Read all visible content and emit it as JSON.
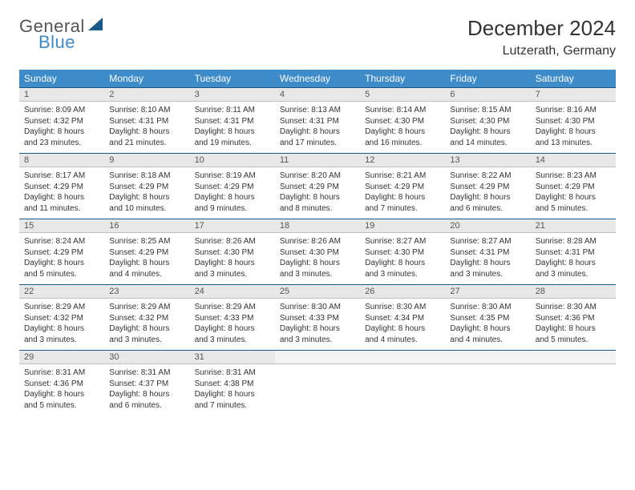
{
  "brand": {
    "word1": "General",
    "word2": "Blue"
  },
  "header": {
    "title": "December 2024",
    "location": "Lutzerath, Germany"
  },
  "colors": {
    "header_bg": "#3e8bc9",
    "header_text": "#ffffff",
    "daynum_bg": "#e8e8e8",
    "daynum_border_top": "#1a5a8a",
    "text": "#333333"
  },
  "weekdays": [
    "Sunday",
    "Monday",
    "Tuesday",
    "Wednesday",
    "Thursday",
    "Friday",
    "Saturday"
  ],
  "weeks": [
    [
      {
        "n": "1",
        "sr": "Sunrise: 8:09 AM",
        "ss": "Sunset: 4:32 PM",
        "d1": "Daylight: 8 hours",
        "d2": "and 23 minutes."
      },
      {
        "n": "2",
        "sr": "Sunrise: 8:10 AM",
        "ss": "Sunset: 4:31 PM",
        "d1": "Daylight: 8 hours",
        "d2": "and 21 minutes."
      },
      {
        "n": "3",
        "sr": "Sunrise: 8:11 AM",
        "ss": "Sunset: 4:31 PM",
        "d1": "Daylight: 8 hours",
        "d2": "and 19 minutes."
      },
      {
        "n": "4",
        "sr": "Sunrise: 8:13 AM",
        "ss": "Sunset: 4:31 PM",
        "d1": "Daylight: 8 hours",
        "d2": "and 17 minutes."
      },
      {
        "n": "5",
        "sr": "Sunrise: 8:14 AM",
        "ss": "Sunset: 4:30 PM",
        "d1": "Daylight: 8 hours",
        "d2": "and 16 minutes."
      },
      {
        "n": "6",
        "sr": "Sunrise: 8:15 AM",
        "ss": "Sunset: 4:30 PM",
        "d1": "Daylight: 8 hours",
        "d2": "and 14 minutes."
      },
      {
        "n": "7",
        "sr": "Sunrise: 8:16 AM",
        "ss": "Sunset: 4:30 PM",
        "d1": "Daylight: 8 hours",
        "d2": "and 13 minutes."
      }
    ],
    [
      {
        "n": "8",
        "sr": "Sunrise: 8:17 AM",
        "ss": "Sunset: 4:29 PM",
        "d1": "Daylight: 8 hours",
        "d2": "and 11 minutes."
      },
      {
        "n": "9",
        "sr": "Sunrise: 8:18 AM",
        "ss": "Sunset: 4:29 PM",
        "d1": "Daylight: 8 hours",
        "d2": "and 10 minutes."
      },
      {
        "n": "10",
        "sr": "Sunrise: 8:19 AM",
        "ss": "Sunset: 4:29 PM",
        "d1": "Daylight: 8 hours",
        "d2": "and 9 minutes."
      },
      {
        "n": "11",
        "sr": "Sunrise: 8:20 AM",
        "ss": "Sunset: 4:29 PM",
        "d1": "Daylight: 8 hours",
        "d2": "and 8 minutes."
      },
      {
        "n": "12",
        "sr": "Sunrise: 8:21 AM",
        "ss": "Sunset: 4:29 PM",
        "d1": "Daylight: 8 hours",
        "d2": "and 7 minutes."
      },
      {
        "n": "13",
        "sr": "Sunrise: 8:22 AM",
        "ss": "Sunset: 4:29 PM",
        "d1": "Daylight: 8 hours",
        "d2": "and 6 minutes."
      },
      {
        "n": "14",
        "sr": "Sunrise: 8:23 AM",
        "ss": "Sunset: 4:29 PM",
        "d1": "Daylight: 8 hours",
        "d2": "and 5 minutes."
      }
    ],
    [
      {
        "n": "15",
        "sr": "Sunrise: 8:24 AM",
        "ss": "Sunset: 4:29 PM",
        "d1": "Daylight: 8 hours",
        "d2": "and 5 minutes."
      },
      {
        "n": "16",
        "sr": "Sunrise: 8:25 AM",
        "ss": "Sunset: 4:29 PM",
        "d1": "Daylight: 8 hours",
        "d2": "and 4 minutes."
      },
      {
        "n": "17",
        "sr": "Sunrise: 8:26 AM",
        "ss": "Sunset: 4:30 PM",
        "d1": "Daylight: 8 hours",
        "d2": "and 3 minutes."
      },
      {
        "n": "18",
        "sr": "Sunrise: 8:26 AM",
        "ss": "Sunset: 4:30 PM",
        "d1": "Daylight: 8 hours",
        "d2": "and 3 minutes."
      },
      {
        "n": "19",
        "sr": "Sunrise: 8:27 AM",
        "ss": "Sunset: 4:30 PM",
        "d1": "Daylight: 8 hours",
        "d2": "and 3 minutes."
      },
      {
        "n": "20",
        "sr": "Sunrise: 8:27 AM",
        "ss": "Sunset: 4:31 PM",
        "d1": "Daylight: 8 hours",
        "d2": "and 3 minutes."
      },
      {
        "n": "21",
        "sr": "Sunrise: 8:28 AM",
        "ss": "Sunset: 4:31 PM",
        "d1": "Daylight: 8 hours",
        "d2": "and 3 minutes."
      }
    ],
    [
      {
        "n": "22",
        "sr": "Sunrise: 8:29 AM",
        "ss": "Sunset: 4:32 PM",
        "d1": "Daylight: 8 hours",
        "d2": "and 3 minutes."
      },
      {
        "n": "23",
        "sr": "Sunrise: 8:29 AM",
        "ss": "Sunset: 4:32 PM",
        "d1": "Daylight: 8 hours",
        "d2": "and 3 minutes."
      },
      {
        "n": "24",
        "sr": "Sunrise: 8:29 AM",
        "ss": "Sunset: 4:33 PM",
        "d1": "Daylight: 8 hours",
        "d2": "and 3 minutes."
      },
      {
        "n": "25",
        "sr": "Sunrise: 8:30 AM",
        "ss": "Sunset: 4:33 PM",
        "d1": "Daylight: 8 hours",
        "d2": "and 3 minutes."
      },
      {
        "n": "26",
        "sr": "Sunrise: 8:30 AM",
        "ss": "Sunset: 4:34 PM",
        "d1": "Daylight: 8 hours",
        "d2": "and 4 minutes."
      },
      {
        "n": "27",
        "sr": "Sunrise: 8:30 AM",
        "ss": "Sunset: 4:35 PM",
        "d1": "Daylight: 8 hours",
        "d2": "and 4 minutes."
      },
      {
        "n": "28",
        "sr": "Sunrise: 8:30 AM",
        "ss": "Sunset: 4:36 PM",
        "d1": "Daylight: 8 hours",
        "d2": "and 5 minutes."
      }
    ],
    [
      {
        "n": "29",
        "sr": "Sunrise: 8:31 AM",
        "ss": "Sunset: 4:36 PM",
        "d1": "Daylight: 8 hours",
        "d2": "and 5 minutes."
      },
      {
        "n": "30",
        "sr": "Sunrise: 8:31 AM",
        "ss": "Sunset: 4:37 PM",
        "d1": "Daylight: 8 hours",
        "d2": "and 6 minutes."
      },
      {
        "n": "31",
        "sr": "Sunrise: 8:31 AM",
        "ss": "Sunset: 4:38 PM",
        "d1": "Daylight: 8 hours",
        "d2": "and 7 minutes."
      },
      {
        "n": "",
        "sr": "",
        "ss": "",
        "d1": "",
        "d2": ""
      },
      {
        "n": "",
        "sr": "",
        "ss": "",
        "d1": "",
        "d2": ""
      },
      {
        "n": "",
        "sr": "",
        "ss": "",
        "d1": "",
        "d2": ""
      },
      {
        "n": "",
        "sr": "",
        "ss": "",
        "d1": "",
        "d2": ""
      }
    ]
  ]
}
